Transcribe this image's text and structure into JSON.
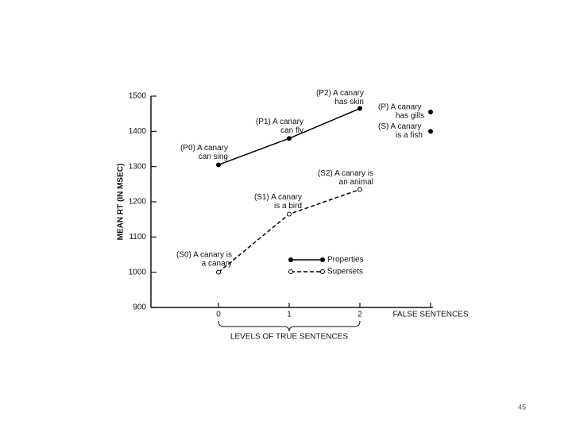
{
  "chart_data": {
    "type": "line",
    "y_label": "MEAN RT (IN MSEC)",
    "x_group_label": "LEVELS OF TRUE SENTENCES",
    "categories": [
      "0",
      "1",
      "2",
      "FALSE SENTENCES"
    ],
    "ylim": [
      900,
      1500
    ],
    "yticks": [
      900,
      1000,
      1100,
      1200,
      1300,
      1400,
      1500
    ],
    "series": [
      {
        "name": "Properties",
        "color": "#000000",
        "style": "solid",
        "marker": "filled",
        "values": [
          1305,
          1380,
          1465,
          null
        ],
        "labels": [
          [
            "(P0) A canary",
            "can sing"
          ],
          [
            "(P1) A canary",
            "can fly"
          ],
          [
            "(P2) A canary",
            "has skin"
          ],
          null
        ]
      },
      {
        "name": "Supersets",
        "color": "#000000",
        "style": "dashed",
        "marker": "open",
        "values": [
          1000,
          1165,
          1235,
          null
        ],
        "labels": [
          [
            "(S0) A canary is",
            "a canary"
          ],
          [
            "(S1) A canary",
            "is a bird"
          ],
          [
            "(S2) A canary is",
            "an animal"
          ],
          null
        ]
      }
    ],
    "false_sentences": [
      {
        "label": [
          "(P) A canary",
          "has gills"
        ],
        "value": 1455,
        "marker": "filled"
      },
      {
        "label": [
          "(S) A canary",
          "is a fish"
        ],
        "value": 1400,
        "marker": "filled"
      }
    ]
  },
  "page_number": "45"
}
